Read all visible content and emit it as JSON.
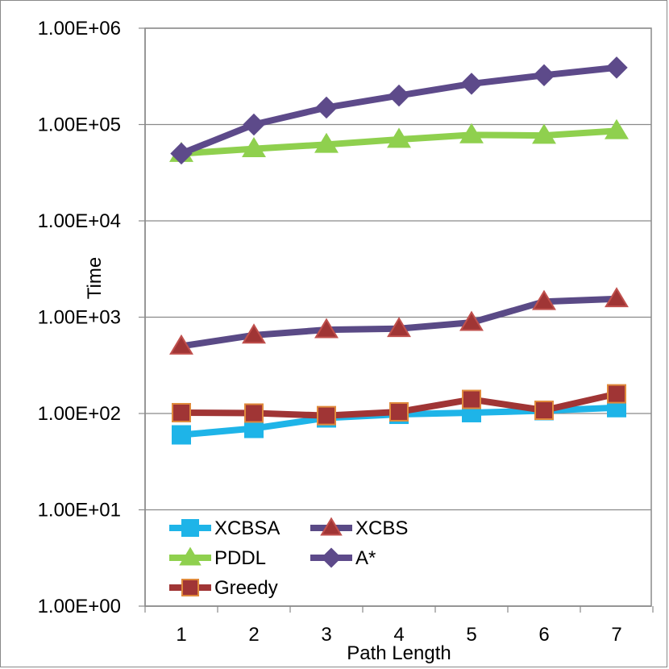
{
  "chart_data": {
    "type": "line",
    "title": "",
    "xlabel": "Path Length",
    "ylabel": "Time",
    "yscale": "log",
    "ylim": [
      1,
      1000000
    ],
    "y_tick_labels": [
      "1.00E+00",
      "1.00E+01",
      "1.00E+02",
      "1.00E+03",
      "1.00E+04",
      "1.00E+05",
      "1.00E+06"
    ],
    "categories": [
      "1",
      "2",
      "3",
      "4",
      "5",
      "6",
      "7"
    ],
    "grid": true,
    "legend_position": "bottom-left",
    "series": [
      {
        "name": "XCBSA",
        "color": "#1eb4e8",
        "marker": "square",
        "values": [
          60,
          70,
          90,
          98,
          102,
          107,
          115
        ]
      },
      {
        "name": "XCBS",
        "color": "#5a4a86",
        "marker": "triangle",
        "marker_color": "#a03535",
        "values": [
          500,
          650,
          740,
          760,
          880,
          1450,
          1550
        ]
      },
      {
        "name": "PDDL",
        "color": "#8fd04e",
        "marker": "triangle",
        "values": [
          50000,
          56000,
          62000,
          70000,
          78000,
          77000,
          86000
        ]
      },
      {
        "name": "A*",
        "color": "#5d4a8a",
        "marker": "diamond",
        "values": [
          50000,
          100000,
          150000,
          200000,
          265000,
          325000,
          390000
        ]
      },
      {
        "name": "Greedy",
        "color": "#a03535",
        "marker": "square",
        "marker_color": "#a03535",
        "values": [
          102,
          101,
          95,
          104,
          140,
          108,
          160
        ]
      }
    ],
    "legend_order": [
      "XCBSA",
      "XCBS",
      "PDDL",
      "A*",
      "Greedy"
    ]
  }
}
